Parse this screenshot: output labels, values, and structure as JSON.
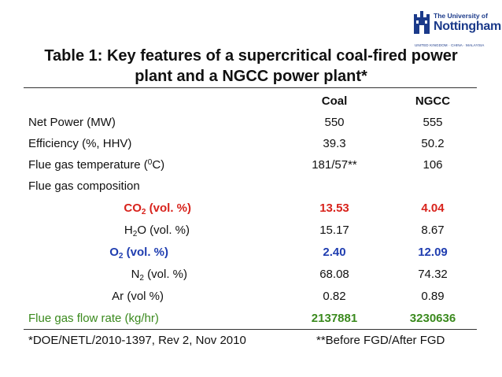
{
  "logo": {
    "line1": "The University of",
    "line2": "Nottingham",
    "line3": "UNITED KINGDOM · CHINA · MALAYSIA"
  },
  "title": {
    "line1": "Table 1: Key features of a supercritical coal-fired power",
    "line2": "plant and a NGCC power plant*"
  },
  "table": {
    "headers": {
      "coal": "Coal",
      "ngcc": "NGCC"
    },
    "rows": {
      "net_power": {
        "label": "Net Power (MW)",
        "coal": "550",
        "ngcc": "555"
      },
      "efficiency": {
        "label": "Efficiency (%, HHV)",
        "coal": "39.3",
        "ngcc": "50.2"
      },
      "flue_temp": {
        "label_pre": "Flue gas temperature (",
        "label_sup": "0",
        "label_post": "C)",
        "coal": "181/57**",
        "ngcc": "106"
      },
      "composition": {
        "label": "Flue gas composition"
      },
      "co2": {
        "label_pre": "CO",
        "label_sub": "2",
        "label_post": " (vol. %)",
        "coal": "13.53",
        "ngcc": "4.04"
      },
      "h2o": {
        "label_pre": "H",
        "label_sub": "2",
        "label_post": "O (vol. %)",
        "coal": "15.17",
        "ngcc": "8.67"
      },
      "o2": {
        "label_pre": "O",
        "label_sub": "2",
        "label_post": " (vol. %)",
        "coal": "2.40",
        "ngcc": "12.09"
      },
      "n2": {
        "label_pre": "N",
        "label_sub": "2",
        "label_post": " (vol. %)",
        "coal": "68.08",
        "ngcc": "74.32"
      },
      "ar": {
        "label": "Ar (vol %)",
        "coal": "0.82",
        "ngcc": "0.89"
      },
      "flow": {
        "label": "Flue gas flow rate (kg/hr)",
        "coal": "2137881",
        "ngcc": "3230636"
      }
    }
  },
  "footnotes": {
    "left": "*DOE/NETL/2010-1397, Rev 2, Nov 2010",
    "right": "**Before FGD/After FGD"
  },
  "colors": {
    "co2": "#d8231c",
    "o2": "#1f3db0",
    "flow": "#3b8a1e",
    "brand": "#1b3a8a"
  }
}
